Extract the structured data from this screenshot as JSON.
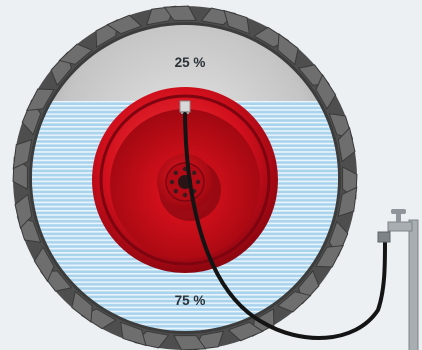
{
  "labels": {
    "air_fill": "25 %",
    "water_fill": "75 %"
  },
  "fill": {
    "water_fraction": 0.75,
    "air_fraction": 0.25
  },
  "icons": {
    "tire": "tractor-tire-icon",
    "rim": "wheel-rim-icon",
    "valve": "valve-icon",
    "hose": "hose-icon",
    "tap": "water-tap-icon"
  },
  "colors": {
    "background": "#ecf0f3",
    "tread": "#5a5a5a",
    "sidewall": "#bdbdbd",
    "water": "#a9d3ec",
    "water_lines": "#ffffff",
    "rim": "#d10f1c",
    "rim_dark": "#8e0610",
    "hose": "#1b1b1b",
    "tap": "#9aa0a5"
  }
}
